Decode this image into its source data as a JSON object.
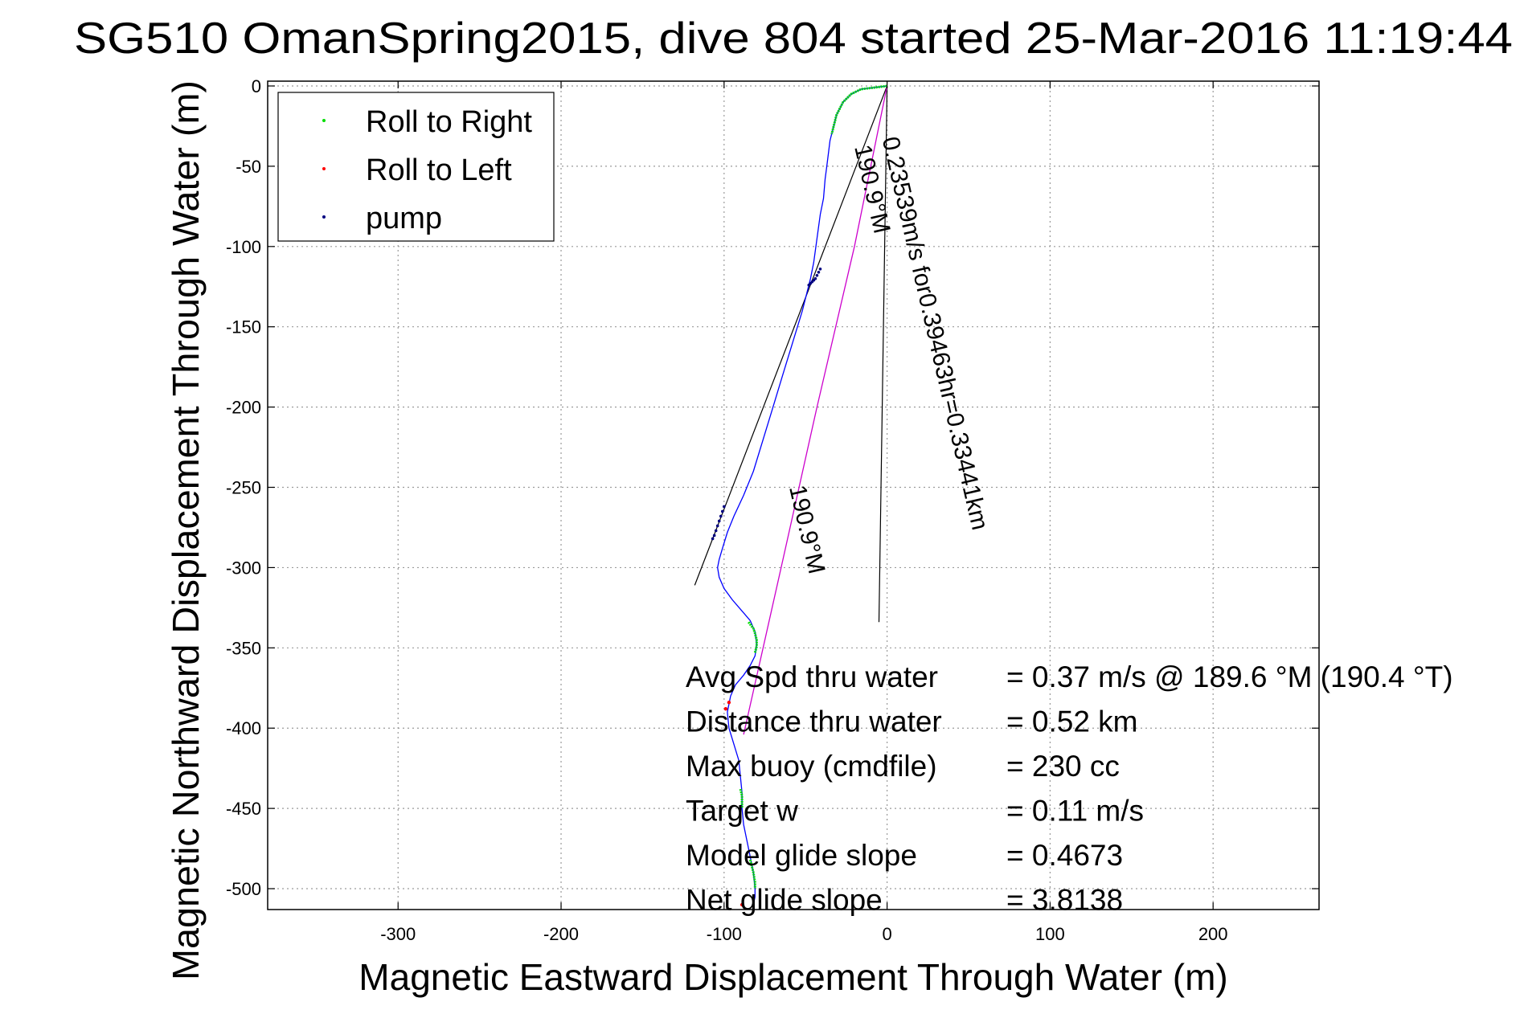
{
  "title": "SG510 OmanSpring2015, dive 804 started 25-Mar-2016 11:19:44",
  "colors": {
    "roll_right": "#00dd00",
    "roll_left": "#ff0000",
    "pump": "#000080",
    "track": "#0000ff",
    "bearing": "#cc00cc",
    "lines": "#000000",
    "grid": "#9a9a9a"
  },
  "chart_data": {
    "type": "line",
    "xlabel": "Magnetic Eastward Displacement Through Water (m)",
    "ylabel": "Magnetic Northward Displacement Through Water (m)",
    "xlim": [
      -380,
      265
    ],
    "ylim": [
      -513,
      3
    ],
    "xticks": [
      -300,
      -200,
      -100,
      0,
      100,
      200
    ],
    "yticks": [
      0,
      -50,
      -100,
      -150,
      -200,
      -250,
      -300,
      -350,
      -400,
      -450,
      -500
    ],
    "grid": true,
    "legend_position": "top-left",
    "legend": [
      {
        "label": "Roll to Right",
        "color": "#00dd00"
      },
      {
        "label": "Roll to Left",
        "color": "#ff0000"
      },
      {
        "label": "pump",
        "color": "#000080"
      }
    ],
    "track": {
      "x": [
        0,
        -8,
        -16,
        -22,
        -27,
        -31,
        -33,
        -35,
        -36,
        -37,
        -38,
        -39,
        -41,
        -43,
        -45,
        -47,
        -52,
        -58,
        -64,
        -70,
        -76,
        -82,
        -88,
        -94,
        -98,
        -101,
        -103,
        -104,
        -103,
        -100,
        -95,
        -89,
        -84,
        -81,
        -80,
        -81,
        -84,
        -88,
        -93,
        -96,
        -98,
        -97,
        -94,
        -91,
        -90,
        -89,
        -89,
        -88,
        -86,
        -84,
        -82,
        -81,
        -81,
        -82
      ],
      "y": [
        0,
        -1,
        -2,
        -5,
        -10,
        -18,
        -26,
        -34,
        -42,
        -50,
        -58,
        -70,
        -80,
        -95,
        -110,
        -120,
        -140,
        -160,
        -180,
        -200,
        -220,
        -240,
        -255,
        -268,
        -278,
        -288,
        -295,
        -300,
        -306,
        -313,
        -320,
        -327,
        -333,
        -340,
        -348,
        -355,
        -361,
        -367,
        -373,
        -380,
        -390,
        -400,
        -410,
        -420,
        -430,
        -440,
        -450,
        -460,
        -470,
        -480,
        -490,
        -500,
        -505,
        -510
      ]
    },
    "roll_right_segments": [
      {
        "x": [
          0,
          -8,
          -16,
          -22,
          -27,
          -31,
          -33,
          -34
        ],
        "y": [
          0,
          -1,
          -2,
          -5,
          -10,
          -18,
          -26,
          -30
        ]
      },
      {
        "x": [
          -85,
          -82,
          -81,
          -80,
          -80,
          -81
        ],
        "y": [
          -334,
          -338,
          -341,
          -345,
          -349,
          -353
        ]
      },
      {
        "x": [
          -90,
          -89,
          -89,
          -89
        ],
        "y": [
          -438,
          -442,
          -447,
          -450
        ]
      },
      {
        "x": [
          -84,
          -82,
          -81,
          -81
        ],
        "y": [
          -482,
          -490,
          -496,
          -500
        ]
      }
    ],
    "roll_left_points": {
      "x": [
        -97,
        -99,
        -89
      ],
      "y": [
        -384,
        -388,
        -510
      ]
    },
    "pump_points": {
      "x": [
        -41,
        -42,
        -43,
        -44,
        -45,
        -46,
        -47,
        -48,
        -100,
        -101,
        -102,
        -103,
        -104,
        -105,
        -106,
        -107
      ],
      "y": [
        -114,
        -116,
        -118,
        -120,
        -121,
        -122,
        -123,
        -124,
        -262,
        -265,
        -268,
        -271,
        -274,
        -277,
        -280,
        -282
      ]
    },
    "bearing_line": {
      "x": [
        0,
        -20,
        -43,
        -65,
        -88
      ],
      "y": [
        0,
        -100,
        -200,
        -300,
        -404
      ]
    },
    "reference_lines": [
      {
        "x": [
          0,
          -118
        ],
        "y": [
          0,
          -311
        ]
      },
      {
        "x": [
          0,
          -5
        ],
        "y": [
          0,
          -334
        ]
      }
    ],
    "line_labels": [
      {
        "text": "0.23539m/s for0.39463hr=0.33441km",
        "x": -3,
        "y": -33,
        "rotation": 77
      },
      {
        "text": "190.9°M",
        "x": -20,
        "y": -38,
        "rotation": 77
      },
      {
        "text": "190.9°M",
        "x": -60,
        "y": -250,
        "rotation": 77
      }
    ],
    "annotations": [
      {
        "label": "Avg Spd thru water",
        "value": "=  0.37 m/s @ 189.6 °M (190.4 °T)"
      },
      {
        "label": "Distance thru water",
        "value": "=  0.52 km"
      },
      {
        "label": "Max buoy (cmdfile)",
        "value": "= 230 cc"
      },
      {
        "label": "Target w",
        "value": "= 0.11 m/s"
      },
      {
        "label": "Model glide slope",
        "value": "= 0.4673"
      },
      {
        "label": "Net glide slope",
        "value": "= 3.8138"
      }
    ]
  }
}
